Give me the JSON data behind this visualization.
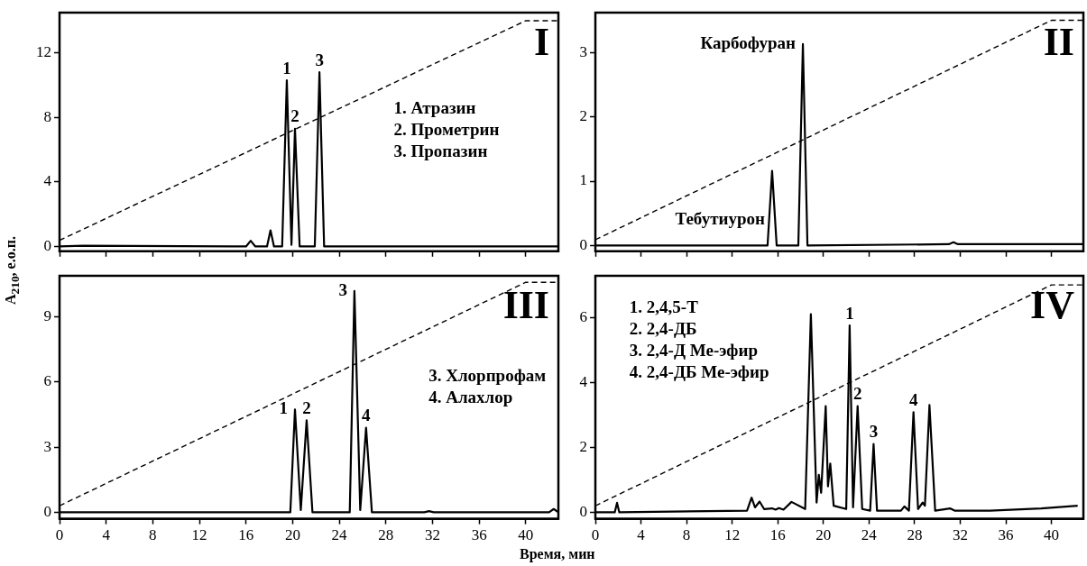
{
  "chart_data": [
    {
      "type": "line",
      "ylabel": "A$_{210}$, е.о.п.",
      "xlim": [
        0,
        42.8
      ],
      "ylim": [
        -0.3,
        14.5
      ],
      "xticks": [
        0,
        4,
        8,
        12,
        16,
        20,
        24,
        28,
        32,
        36,
        40
      ],
      "yticks": [
        0,
        4,
        8,
        12
      ],
      "tick_labels": "y",
      "grid": false,
      "legend": false,
      "marker": "none",
      "series": [
        {
          "color": "#000000",
          "line_style": "solid",
          "x": [
            0,
            2,
            16.0,
            16.4,
            16.8,
            17.8,
            18.1,
            18.4,
            19.1,
            19.5,
            19.9,
            20.2,
            20.6,
            21.9,
            22.3,
            22.7,
            42.8
          ],
          "values": [
            0,
            0.05,
            0,
            0.35,
            0,
            0,
            1.0,
            0,
            0,
            10.3,
            0.1,
            7.3,
            0,
            0,
            10.8,
            0,
            0
          ]
        },
        {
          "color": "#000000",
          "line_style": "dashed",
          "x": [
            0,
            40,
            42.8
          ],
          "values": [
            0.38,
            14.0,
            14.0
          ]
        }
      ],
      "annotations": [
        "I",
        "1. Атразин",
        "2. Прометрин",
        "3. Пропазин",
        {
          "text": "1",
          "x": 19.5,
          "y": 10.3
        },
        {
          "text": "2",
          "x": 20.2,
          "y": 7.3
        },
        {
          "text": "3",
          "x": 22.3,
          "y": 10.8
        }
      ]
    },
    {
      "type": "line",
      "xlim": [
        0,
        42.8
      ],
      "ylim": [
        -0.09,
        3.62
      ],
      "xticks": [
        0,
        4,
        8,
        12,
        16,
        20,
        24,
        28,
        32,
        36,
        40
      ],
      "yticks": [
        0,
        1,
        2,
        3
      ],
      "tick_labels": "y",
      "grid": false,
      "legend": false,
      "marker": "none",
      "series": [
        {
          "color": "#000000",
          "line_style": "solid",
          "x": [
            0,
            15.1,
            15.5,
            15.9,
            17.8,
            18.2,
            18.6,
            31.0,
            31.4,
            31.8,
            42.8
          ],
          "values": [
            0,
            0,
            1.16,
            0,
            0,
            3.13,
            0,
            0.02,
            0.05,
            0.02,
            0.02
          ]
        },
        {
          "color": "#000000",
          "line_style": "dashed",
          "x": [
            0,
            40,
            42.8
          ],
          "values": [
            0.09,
            3.5,
            3.5
          ]
        }
      ],
      "annotations": [
        "II",
        {
          "text": "Карбофуран",
          "x": 18.2,
          "y": 3.13
        },
        {
          "text": "Тебутиурон",
          "x": 15.5,
          "y": 0.4
        }
      ]
    },
    {
      "type": "line",
      "xlabel": "Время, мин",
      "xlim": [
        0,
        42.8
      ],
      "ylim": [
        -0.3,
        10.9
      ],
      "xticks": [
        0,
        4,
        8,
        12,
        16,
        20,
        24,
        28,
        32,
        36,
        40
      ],
      "yticks": [
        0,
        3,
        6,
        9
      ],
      "grid": false,
      "legend": false,
      "marker": "none",
      "series": [
        {
          "color": "#000000",
          "line_style": "solid",
          "x": [
            0,
            19.8,
            20.2,
            20.7,
            21.2,
            21.7,
            24.9,
            25.3,
            25.8,
            26.3,
            26.8,
            31.3,
            31.7,
            32.1,
            42.0,
            42.4,
            42.8
          ],
          "values": [
            0,
            0,
            4.74,
            0.1,
            4.24,
            0,
            0,
            10.2,
            0.1,
            3.9,
            0,
            0,
            0.05,
            0,
            0,
            0.15,
            0
          ]
        },
        {
          "color": "#000000",
          "line_style": "dashed",
          "x": [
            0,
            40,
            42.8
          ],
          "values": [
            0.3,
            10.6,
            10.6
          ]
        }
      ],
      "annotations": [
        "III",
        "3. Хлорпрофам",
        "4. Алахлор",
        {
          "text": "1",
          "x": 20.2,
          "y": 4.74
        },
        {
          "text": "2",
          "x": 21.2,
          "y": 4.24
        },
        {
          "text": "3",
          "x": 25.3,
          "y": 10.2
        },
        {
          "text": "4",
          "x": 26.3,
          "y": 3.9
        }
      ]
    },
    {
      "type": "line",
      "xlim": [
        0,
        42.8
      ],
      "ylim": [
        -0.2,
        7.28
      ],
      "xticks": [
        0,
        4,
        8,
        12,
        16,
        20,
        24,
        28,
        32,
        36,
        40
      ],
      "yticks": [
        0,
        2,
        4,
        6
      ],
      "grid": false,
      "legend": false,
      "marker": "none",
      "series": [
        {
          "color": "#000000",
          "line_style": "solid",
          "x": [
            0,
            1.7,
            1.9,
            2.1,
            13.3,
            13.7,
            14.0,
            14.4,
            14.8,
            15.5,
            15.8,
            16.1,
            16.5,
            17.2,
            18.4,
            18.9,
            19.4,
            19.6,
            19.8,
            20.2,
            20.4,
            20.6,
            20.9,
            22.0,
            22.3,
            22.6,
            23.0,
            23.4,
            24.1,
            24.4,
            24.7,
            26.8,
            27.1,
            27.5,
            27.9,
            28.3,
            28.7,
            28.9,
            29.3,
            29.8,
            31.1,
            31.5,
            34.6,
            39.1,
            42.3
          ],
          "values": [
            0,
            0,
            0.29,
            0,
            0.05,
            0.45,
            0.15,
            0.33,
            0.1,
            0.12,
            0.08,
            0.13,
            0.08,
            0.32,
            0.1,
            6.1,
            0.3,
            1.15,
            0.6,
            3.27,
            0.8,
            1.5,
            0.2,
            0.1,
            5.75,
            0.15,
            3.27,
            0.1,
            0.05,
            2.1,
            0.05,
            0.05,
            0.18,
            0.05,
            3.08,
            0.1,
            0.3,
            0.2,
            3.3,
            0.05,
            0.12,
            0.05,
            0.05,
            0.12,
            0.2
          ]
        },
        {
          "color": "#000000",
          "line_style": "dashed",
          "x": [
            0,
            40,
            42.8
          ],
          "values": [
            0.2,
            7.0,
            7.0
          ]
        }
      ],
      "annotations": [
        "IV",
        "1. 2,4,5-T",
        "2. 2,4-ДБ",
        "3. 2,4-Д Ме-эфир",
        "4. 2,4-ДБ Ме-эфир",
        {
          "text": "1",
          "x": 22.3,
          "y": 5.75
        },
        {
          "text": "2",
          "x": 23.0,
          "y": 3.27
        },
        {
          "text": "3",
          "x": 24.4,
          "y": 2.1
        },
        {
          "text": "4",
          "x": 27.9,
          "y": 3.08
        }
      ]
    }
  ]
}
